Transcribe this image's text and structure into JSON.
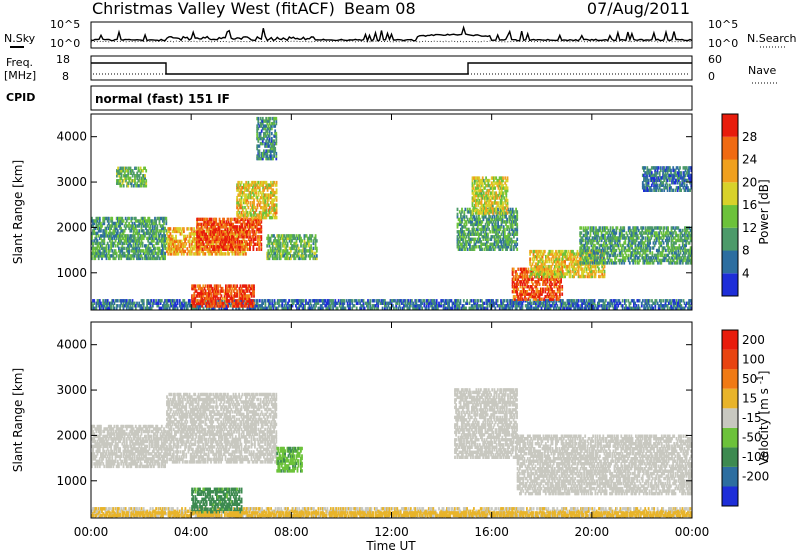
{
  "header": {
    "title": "Christmas Valley West (fitACF)",
    "beam": "Beam 08",
    "date": "07/Aug/2011"
  },
  "aux_panels": {
    "nsky_label": "N.Sky",
    "nsearch_label": "N.Search",
    "noise_ticks": [
      "10^5",
      "10^0"
    ],
    "freq_label": "Freq.",
    "freq_unit": "[MHz]",
    "freq_ticks": [
      "18",
      "8"
    ],
    "nave_label": "Nave",
    "nave_ticks": [
      "60",
      "0"
    ],
    "cpid_label": "CPID",
    "cpid_value": "normal (fast) 151 IF"
  },
  "axes": {
    "y_label": "Slant Range [km]",
    "y_ticks": [
      "1000",
      "2000",
      "3000",
      "4000"
    ],
    "x_label": "Time UT",
    "x_ticks": [
      "00:00",
      "04:00",
      "08:00",
      "12:00",
      "16:00",
      "20:00",
      "00:00"
    ]
  },
  "colorbars": {
    "power": {
      "label": "Power [dB]",
      "ticks": [
        "4",
        "8",
        "12",
        "16",
        "20",
        "24",
        "28"
      ],
      "colors": [
        "#1e2ed8",
        "#2d6ea0",
        "#4d9a6a",
        "#6cc23a",
        "#d8d22a",
        "#f0a01e",
        "#f06a12",
        "#e81c0c"
      ]
    },
    "velocity": {
      "label": "Velocity [m s^-1]",
      "ticks": [
        "200",
        "100",
        "50",
        "15",
        "-15",
        "-50",
        "-100",
        "-200"
      ],
      "colors": [
        "#1e2ed8",
        "#2d6ea0",
        "#3d8a50",
        "#6cc23a",
        "#c8c8c0",
        "#e8b42a",
        "#f07a14",
        "#e84410",
        "#e81c0c"
      ]
    }
  },
  "chart_data": [
    {
      "type": "heatmap",
      "name": "power",
      "title": "Christmas Valley West (fitACF) Beam 08 07/Aug/2011",
      "xlabel": "Time UT",
      "ylabel": "Slant Range [km]",
      "xlim": [
        "00:00",
        "24:00"
      ],
      "ylim": [
        180,
        4500
      ],
      "colorbar_label": "Power [dB]",
      "colorbar_range": [
        0,
        30
      ],
      "patches": [
        {
          "t0": 0.0,
          "t1": 24.0,
          "r0": 200,
          "r1": 420,
          "value": 6
        },
        {
          "t0": 0.0,
          "t1": 3.0,
          "r0": 1300,
          "r1": 2200,
          "value": 10
        },
        {
          "t0": 1.0,
          "t1": 2.2,
          "r0": 2900,
          "r1": 3300,
          "value": 12
        },
        {
          "t0": 3.0,
          "t1": 6.2,
          "r0": 1400,
          "r1": 2000,
          "value": 20
        },
        {
          "t0": 4.2,
          "t1": 6.8,
          "r0": 1500,
          "r1": 2200,
          "value": 26
        },
        {
          "t0": 5.8,
          "t1": 7.4,
          "r0": 2200,
          "r1": 3000,
          "value": 18
        },
        {
          "t0": 6.6,
          "t1": 7.4,
          "r0": 3500,
          "r1": 4400,
          "value": 8
        },
        {
          "t0": 7.0,
          "t1": 9.0,
          "r0": 1300,
          "r1": 1800,
          "value": 12
        },
        {
          "t0": 4.0,
          "t1": 6.5,
          "r0": 250,
          "r1": 700,
          "value": 27
        },
        {
          "t0": 14.6,
          "t1": 17.0,
          "r0": 1500,
          "r1": 2400,
          "value": 10
        },
        {
          "t0": 15.2,
          "t1": 16.6,
          "r0": 2300,
          "r1": 3100,
          "value": 16
        },
        {
          "t0": 16.8,
          "t1": 18.8,
          "r0": 400,
          "r1": 1100,
          "value": 26
        },
        {
          "t0": 17.5,
          "t1": 20.5,
          "r0": 900,
          "r1": 1500,
          "value": 18
        },
        {
          "t0": 19.5,
          "t1": 24.0,
          "r0": 1200,
          "r1": 2000,
          "value": 10
        },
        {
          "t0": 22.0,
          "t1": 24.0,
          "r0": 2800,
          "r1": 3300,
          "value": 6
        }
      ]
    },
    {
      "type": "heatmap",
      "name": "velocity",
      "xlabel": "Time UT",
      "ylabel": "Slant Range [km]",
      "xlim": [
        "00:00",
        "24:00"
      ],
      "ylim": [
        180,
        4500
      ],
      "colorbar_label": "Velocity [m s^-1]",
      "colorbar_range": [
        -200,
        200
      ],
      "patches": [
        {
          "t0": 0.0,
          "t1": 24.0,
          "r0": 200,
          "r1": 400,
          "value": 20
        },
        {
          "t0": 0.0,
          "t1": 3.0,
          "r0": 1300,
          "r1": 2200,
          "value": 0
        },
        {
          "t0": 3.0,
          "t1": 7.4,
          "r0": 1400,
          "r1": 2900,
          "value": 0
        },
        {
          "t0": 7.4,
          "t1": 8.4,
          "r0": 1200,
          "r1": 1700,
          "value": -60
        },
        {
          "t0": 4.0,
          "t1": 6.0,
          "r0": 300,
          "r1": 800,
          "value": -80
        },
        {
          "t0": 14.5,
          "t1": 17.0,
          "r0": 1500,
          "r1": 3000,
          "value": 0
        },
        {
          "t0": 17.0,
          "t1": 24.0,
          "r0": 700,
          "r1": 2000,
          "value": 0
        },
        {
          "t0": 0.0,
          "t1": 24.0,
          "r0": 220,
          "r1": 320,
          "value": 40
        }
      ]
    }
  ]
}
